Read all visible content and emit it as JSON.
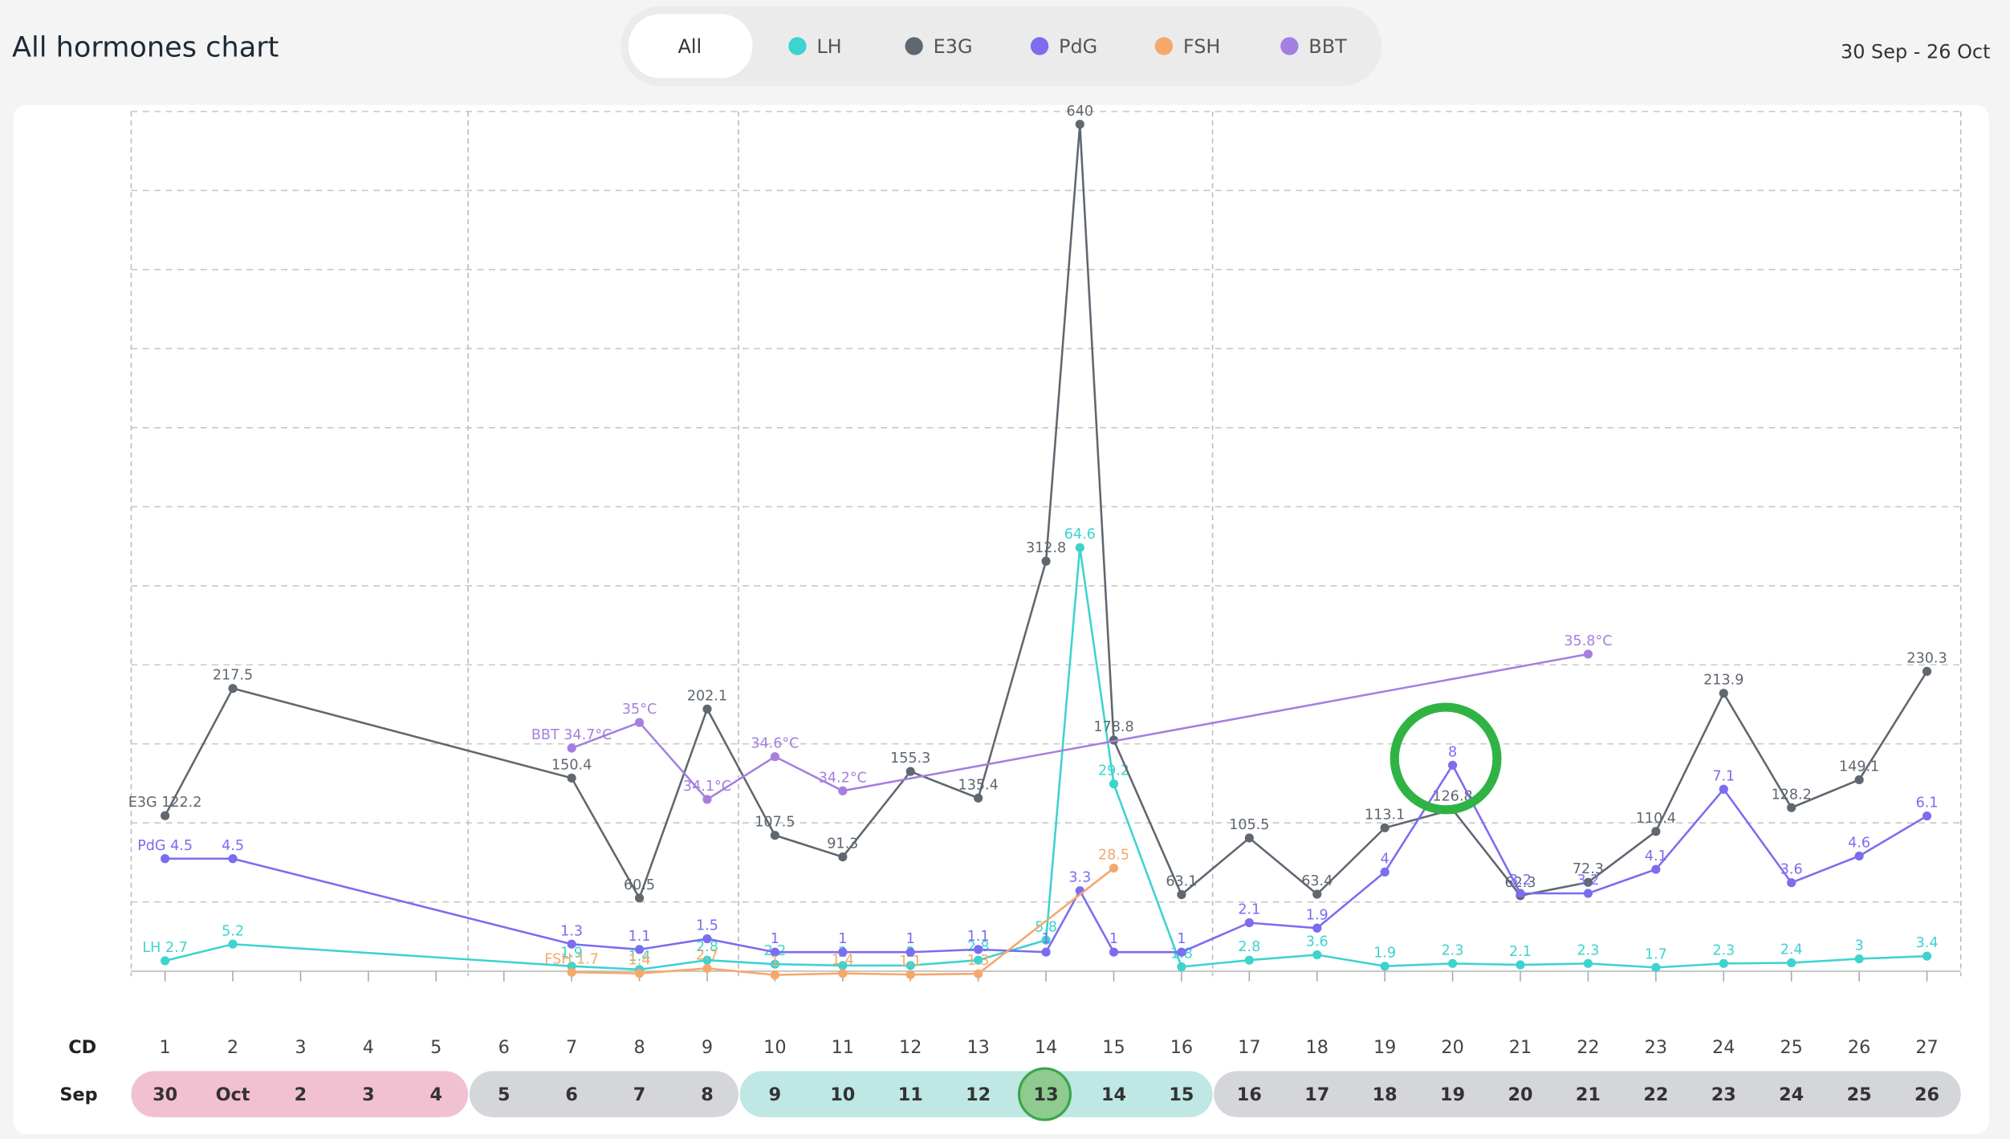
{
  "title": "All hormones chart",
  "filter_all": "All",
  "date_range": "30 Sep - 26 Oct",
  "chart_data": {
    "type": "line",
    "xlim": [
      0.5,
      27.5
    ],
    "xticks": [
      1,
      2,
      3,
      4,
      5,
      6,
      7,
      8,
      9,
      10,
      11,
      12,
      13,
      14,
      15,
      16,
      17,
      18,
      19,
      20,
      21,
      22,
      23,
      24,
      25,
      26,
      27
    ],
    "cd_label": "CD",
    "month_label": "Sep",
    "dates": [
      "30",
      "Oct",
      "2",
      "3",
      "4",
      "5",
      "6",
      "7",
      "8",
      "9",
      "10",
      "11",
      "12",
      "13",
      "14",
      "15",
      "16",
      "17",
      "18",
      "19",
      "20",
      "21",
      "22",
      "23",
      "24",
      "25",
      "26"
    ],
    "series": [
      {
        "name": "LH",
        "color": "#3dd3cf",
        "ylim": [
          0,
          128
        ],
        "x": [
          1,
          2,
          7,
          8,
          9,
          10,
          11,
          12,
          13,
          14,
          14.5,
          15,
          16,
          17,
          18,
          19,
          20,
          21,
          22,
          23,
          24,
          25,
          26,
          27
        ],
        "values": [
          2.7,
          5.2,
          1.9,
          1.4,
          2.8,
          2.2,
          2,
          2,
          2.8,
          5.8,
          64.6,
          29.2,
          1.8,
          2.8,
          3.6,
          1.9,
          2.3,
          2.1,
          2.3,
          1.7,
          2.3,
          2.4,
          3,
          3.4
        ],
        "value_labels": [
          "LH 2.7",
          "5.2",
          "1.9",
          "1.4",
          "2.8",
          "2.2",
          "2",
          "2",
          "2.8",
          "5.8",
          "64.6",
          "29.2",
          "1.8",
          "2.8",
          "3.6",
          "1.9",
          "2.3",
          "2.1",
          "2.3",
          "1.7",
          "2.3",
          "2.4",
          "3",
          "3.4"
        ]
      },
      {
        "name": "E3G",
        "color": "#5f6770",
        "ylim": [
          0,
          640
        ],
        "x": [
          1,
          2,
          7,
          8,
          9,
          10,
          11,
          12,
          13,
          14,
          14.5,
          15,
          16,
          17,
          18,
          19,
          20,
          21,
          22,
          23,
          24,
          25,
          26,
          27
        ],
        "values": [
          122.2,
          217.5,
          150.4,
          60.5,
          202.1,
          107.5,
          91.3,
          155.3,
          135.4,
          312.8,
          640,
          178.8,
          63.1,
          105.5,
          63.4,
          113.1,
          126.8,
          62.3,
          72.3,
          110.4,
          213.9,
          128.2,
          149.1,
          230.3
        ],
        "value_labels": [
          "E3G 122.2",
          "217.5",
          "150.4",
          "60.5",
          "202.1",
          "107.5",
          "91.3",
          "155.3",
          "135.4",
          "312.8",
          "640",
          "178.8",
          "63.1",
          "105.5",
          "63.4",
          "113.1",
          "126.8",
          "62.3",
          "72.3",
          "110.4",
          "213.9",
          "128.2",
          "149.1",
          "230.3"
        ]
      },
      {
        "name": "PdG",
        "color": "#7b6cf0",
        "ylim": [
          0,
          32
        ],
        "x": [
          1,
          2,
          7,
          8,
          9,
          10,
          11,
          12,
          13,
          14,
          14.5,
          15,
          16,
          17,
          18,
          19,
          20,
          21,
          22,
          23,
          24,
          25,
          26,
          27
        ],
        "values": [
          4.5,
          4.5,
          1.3,
          1.1,
          1.5,
          1,
          1,
          1,
          1.1,
          1,
          3.3,
          1,
          1,
          2.1,
          1.9,
          4,
          8,
          3.2,
          3.2,
          4.1,
          7.1,
          3.6,
          4.6,
          6.1
        ],
        "value_labels": [
          "PdG 4.5",
          "4.5",
          "1.3",
          "1.1",
          "1.5",
          "1",
          "1",
          "1",
          "1.1",
          "1",
          "3.3",
          "1",
          "1",
          "2.1",
          "1.9",
          "4",
          "8",
          "3.2",
          "3.2",
          "4.1",
          "7.1",
          "3.6",
          "4.6",
          "6.1"
        ]
      },
      {
        "name": "FSH",
        "color": "#f5a86a",
        "ylim": [
          0,
          220
        ],
        "x": [
          7,
          8,
          9,
          10,
          11,
          12,
          13,
          15
        ],
        "values": [
          1.7,
          1.4,
          2.7,
          1,
          1.4,
          1.1,
          1.3,
          28.5
        ],
        "value_labels": [
          "FSH 1.7",
          "1.4",
          "2.7",
          "1",
          "1.4",
          "1.1",
          "1.3",
          "28.5"
        ]
      },
      {
        "name": "BBT",
        "color": "#a57fe0",
        "ylim": [
          32,
          42
        ],
        "x": [
          7,
          8,
          9,
          10,
          11,
          22
        ],
        "values": [
          34.7,
          35,
          34.1,
          34.6,
          34.2,
          35.8
        ],
        "value_labels": [
          "BBT 34.7°C",
          "35°C",
          "34.1°C",
          "34.6°C",
          "34.2°C",
          "35.8°C"
        ]
      }
    ]
  }
}
